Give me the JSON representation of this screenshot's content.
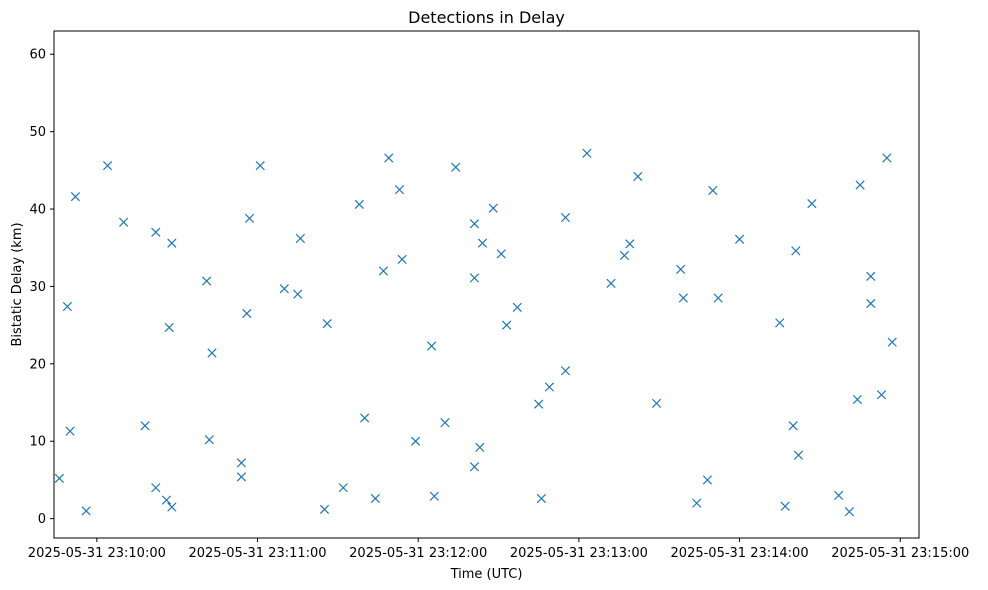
{
  "chart_data": {
    "type": "scatter",
    "title": "Detections in Delay",
    "xlabel": "Time (UTC)",
    "ylabel": "Bistatic Delay (km)",
    "marker": "x",
    "color": "#1f77b4",
    "grid": false,
    "xlim": [
      "2025-05-31 23:09:44",
      "2025-05-31 23:15:07"
    ],
    "ylim": [
      -2.5,
      63.0
    ],
    "xticks": [
      "2025-05-31 23:10:00",
      "2025-05-31 23:11:00",
      "2025-05-31 23:12:00",
      "2025-05-31 23:13:00",
      "2025-05-31 23:14:00",
      "2025-05-31 23:15:00"
    ],
    "yticks": [
      0,
      10,
      20,
      30,
      40,
      50,
      60
    ],
    "series": [
      {
        "x": [
          "2025-05-31 23:09:46",
          "2025-05-31 23:09:56",
          "2025-05-31 23:10:26",
          "2025-05-31 23:10:22",
          "2025-05-31 23:10:28",
          "2025-05-31 23:09:50",
          "2025-05-31 23:10:18",
          "2025-05-31 23:10:54",
          "2025-05-31 23:10:42",
          "2025-05-31 23:10:54",
          "2025-05-31 23:11:32",
          "2025-05-31 23:11:25",
          "2025-05-31 23:11:44",
          "2025-05-31 23:11:59",
          "2025-05-31 23:12:06",
          "2025-05-31 23:11:40",
          "2025-05-31 23:12:10",
          "2025-05-31 23:12:23",
          "2025-05-31 23:12:45",
          "2025-05-31 23:12:21",
          "2025-05-31 23:12:46",
          "2025-05-31 23:12:55",
          "2025-05-31 23:12:49",
          "2025-05-31 23:13:29",
          "2025-05-31 23:13:48",
          "2025-05-31 23:13:44",
          "2025-05-31 23:14:17",
          "2025-05-31 23:14:37",
          "2025-05-31 23:14:20",
          "2025-05-31 23:14:22",
          "2025-05-31 23:14:41",
          "2025-05-31 23:14:44",
          "2025-05-31 23:14:53",
          "2025-05-31 23:09:49",
          "2025-05-31 23:10:43",
          "2025-05-31 23:10:27",
          "2025-05-31 23:10:56",
          "2025-05-31 23:10:41",
          "2025-05-31 23:11:15",
          "2025-05-31 23:11:26",
          "2025-05-31 23:11:10",
          "2025-05-31 23:11:47",
          "2025-05-31 23:11:54",
          "2025-05-31 23:12:05",
          "2025-05-31 23:12:24",
          "2025-05-31 23:12:37",
          "2025-05-31 23:12:31",
          "2025-05-31 23:12:21",
          "2025-05-31 23:12:33",
          "2025-05-31 23:13:12",
          "2025-05-31 23:13:39",
          "2025-05-31 23:13:19",
          "2025-05-31 23:13:17",
          "2025-05-31 23:13:38",
          "2025-05-31 23:13:52",
          "2025-05-31 23:14:21",
          "2025-05-31 23:14:15",
          "2025-05-31 23:14:49",
          "2025-05-31 23:14:49",
          "2025-05-31 23:14:57",
          "2025-05-31 23:09:52",
          "2025-05-31 23:10:04",
          "2025-05-31 23:10:10",
          "2025-05-31 23:10:22",
          "2025-05-31 23:10:28",
          "2025-05-31 23:11:01",
          "2025-05-31 23:10:57",
          "2025-05-31 23:11:16",
          "2025-05-31 23:11:38",
          "2025-05-31 23:11:49",
          "2025-05-31 23:11:53",
          "2025-05-31 23:12:14",
          "2025-05-31 23:12:21",
          "2025-05-31 23:12:28",
          "2025-05-31 23:12:55",
          "2025-05-31 23:13:03",
          "2025-05-31 23:13:22",
          "2025-05-31 23:13:50",
          "2025-05-31 23:14:00",
          "2025-05-31 23:14:27",
          "2025-05-31 23:14:45",
          "2025-05-31 23:14:55"
        ],
        "y": [
          5.2,
          1.0,
          2.4,
          4.0,
          1.5,
          11.3,
          12.0,
          5.4,
          10.2,
          7.2,
          4.0,
          1.2,
          2.6,
          10.0,
          2.9,
          13.0,
          12.4,
          9.2,
          14.8,
          6.7,
          2.6,
          19.1,
          17.0,
          14.9,
          5.0,
          2.0,
          1.6,
          3.0,
          12.0,
          8.2,
          0.9,
          15.4,
          16.0,
          27.4,
          21.4,
          24.7,
          26.5,
          30.7,
          29.0,
          25.2,
          29.7,
          32.0,
          33.5,
          22.3,
          35.6,
          27.3,
          34.2,
          31.1,
          25.0,
          30.4,
          28.5,
          35.5,
          34.0,
          32.2,
          28.5,
          34.6,
          25.3,
          27.8,
          31.3,
          22.8,
          41.6,
          45.6,
          38.3,
          37.0,
          35.6,
          45.6,
          38.8,
          36.2,
          40.6,
          46.6,
          42.5,
          45.4,
          38.1,
          40.1,
          38.9,
          47.2,
          44.2,
          42.4,
          36.1,
          40.7,
          43.1,
          46.6
        ]
      }
    ]
  }
}
